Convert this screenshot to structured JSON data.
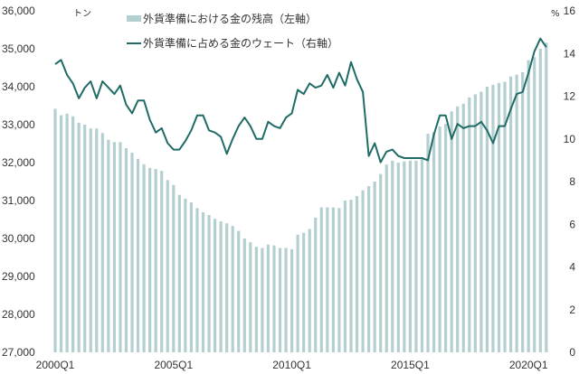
{
  "chart_data": {
    "type": "bar+line",
    "title": "",
    "left_axis": {
      "unit_label": "トン",
      "ylim": [
        27000,
        36000
      ],
      "ticks": [
        "27,000",
        "28,000",
        "29,000",
        "30,000",
        "31,000",
        "32,000",
        "33,000",
        "34,000",
        "35,000",
        "36,000"
      ]
    },
    "right_axis": {
      "unit_label": "%",
      "ylim": [
        0,
        16
      ],
      "ticks": [
        "0",
        "2",
        "4",
        "6",
        "8",
        "10",
        "12",
        "14",
        "16"
      ]
    },
    "x_tick_labels": [
      "2000Q1",
      "2005Q1",
      "2010Q1",
      "2015Q1",
      "2020Q1"
    ],
    "x_tick_index": [
      0,
      20,
      40,
      60,
      80
    ],
    "grid": false,
    "legend_position": "top",
    "categories_start": "2000Q1",
    "categories_end": "2020Q4",
    "series": [
      {
        "name": "外貨準備における金の残高（左軸）",
        "type": "bar",
        "axis": "left",
        "color": "#b4cfd0",
        "values": [
          33420,
          33250,
          33290,
          33220,
          33050,
          33000,
          32900,
          32900,
          32780,
          32600,
          32540,
          32540,
          32380,
          32260,
          32100,
          31960,
          31860,
          31830,
          31780,
          31540,
          31410,
          31150,
          31050,
          30950,
          30800,
          30690,
          30620,
          30520,
          30450,
          30400,
          30330,
          30200,
          30000,
          29900,
          29780,
          29750,
          29840,
          29820,
          29750,
          29750,
          29720,
          30100,
          30150,
          30250,
          30550,
          30820,
          30820,
          30820,
          30800,
          31000,
          31020,
          31120,
          31270,
          31380,
          31500,
          31700,
          31950,
          32050,
          32000,
          32030,
          32050,
          32050,
          32100,
          32760,
          32800,
          32950,
          33020,
          33350,
          33480,
          33550,
          33720,
          33800,
          33870,
          34000,
          34050,
          34100,
          34130,
          34270,
          34320,
          34380,
          34700,
          34780,
          35000,
          35160
        ]
      },
      {
        "name": "外貨準備に占める金のウェート（右軸）",
        "type": "line",
        "axis": "right",
        "color": "#1f6b66",
        "values": [
          13.5,
          13.7,
          13.0,
          12.6,
          11.9,
          12.4,
          12.7,
          11.9,
          12.7,
          12.4,
          12.1,
          12.5,
          11.6,
          11.2,
          11.8,
          11.8,
          10.9,
          10.3,
          10.5,
          9.8,
          9.5,
          9.5,
          9.9,
          10.4,
          11.1,
          11.1,
          10.4,
          10.3,
          10.1,
          9.3,
          10.0,
          10.6,
          11.0,
          10.6,
          10.0,
          10.0,
          10.8,
          10.6,
          10.5,
          11.0,
          11.2,
          12.3,
          12.1,
          12.6,
          12.4,
          12.5,
          13.0,
          12.4,
          13.1,
          12.5,
          13.6,
          12.8,
          12.2,
          9.2,
          9.8,
          8.9,
          9.4,
          9.5,
          9.2,
          9.1,
          9.1,
          9.1,
          9.1,
          9.0,
          10.2,
          11.1,
          11.1,
          10.0,
          10.7,
          10.5,
          10.6,
          10.6,
          10.8,
          10.4,
          9.8,
          10.6,
          10.6,
          11.4,
          12.1,
          12.2,
          13.1,
          14.1,
          14.7,
          14.3
        ]
      }
    ]
  },
  "legend": {
    "bar_label": "外貨準備における金の残高（左軸）",
    "line_label": "外貨準備に占める金のウェート（右軸）"
  }
}
